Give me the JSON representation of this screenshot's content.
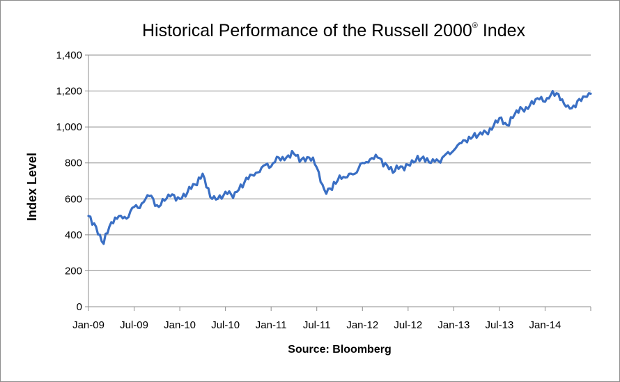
{
  "chart_data": {
    "type": "line",
    "title": "Historical Performance of the Russell 2000",
    "title_superscript": "®",
    "title_suffix": " Index",
    "ylabel": "Index Level",
    "xlabel": "",
    "source": "Source: Bloomberg",
    "ylim": [
      0,
      1400
    ],
    "y_ticks": [
      "0",
      "200",
      "400",
      "600",
      "800",
      "1,000",
      "1,200",
      "1,400"
    ],
    "y_tick_values": [
      0,
      200,
      400,
      600,
      800,
      1000,
      1200,
      1400
    ],
    "x_ticks": [
      "Jan-09",
      "Jul-09",
      "Jan-10",
      "Jul-10",
      "Jan-11",
      "Jul-11",
      "Jan-12",
      "Jul-12",
      "Jan-13",
      "Jul-13",
      "Jan-14"
    ],
    "xlim": [
      "2009-01",
      "2014-07"
    ],
    "grid": true,
    "line_color": "#3a6fc4",
    "series": [
      {
        "x": [
          "2009-01",
          "2009-02",
          "2009-03",
          "2009-04",
          "2009-05",
          "2009-06",
          "2009-07",
          "2009-08",
          "2009-09",
          "2009-10",
          "2009-11",
          "2009-12",
          "2010-01",
          "2010-02",
          "2010-03",
          "2010-04",
          "2010-05",
          "2010-06",
          "2010-07",
          "2010-08",
          "2010-09",
          "2010-10",
          "2010-11",
          "2010-12",
          "2011-01",
          "2011-02",
          "2011-03",
          "2011-04",
          "2011-05",
          "2011-06",
          "2011-07",
          "2011-08",
          "2011-09",
          "2011-10",
          "2011-11",
          "2011-12",
          "2012-01",
          "2012-02",
          "2012-03",
          "2012-04",
          "2012-05",
          "2012-06",
          "2012-07",
          "2012-08",
          "2012-09",
          "2012-10",
          "2012-11",
          "2012-12",
          "2013-01",
          "2013-02",
          "2013-03",
          "2013-04",
          "2013-05",
          "2013-06",
          "2013-07",
          "2013-08",
          "2013-09",
          "2013-10",
          "2013-11",
          "2013-12",
          "2014-01",
          "2014-02",
          "2014-03",
          "2014-04",
          "2014-05",
          "2014-06",
          "2014-07"
        ],
        "values": [
          505,
          445,
          350,
          470,
          505,
          490,
          555,
          575,
          615,
          565,
          590,
          625,
          600,
          635,
          680,
          740,
          610,
          600,
          640,
          605,
          680,
          710,
          745,
          785,
          780,
          830,
          830,
          850,
          820,
          830,
          775,
          650,
          650,
          730,
          720,
          740,
          800,
          820,
          830,
          800,
          745,
          780,
          790,
          810,
          835,
          800,
          810,
          850,
          870,
          910,
          945,
          940,
          980,
          985,
          1050,
          1010,
          1070,
          1100,
          1120,
          1160,
          1140,
          1200,
          1150,
          1120,
          1110,
          1170,
          1185
        ]
      }
    ]
  }
}
